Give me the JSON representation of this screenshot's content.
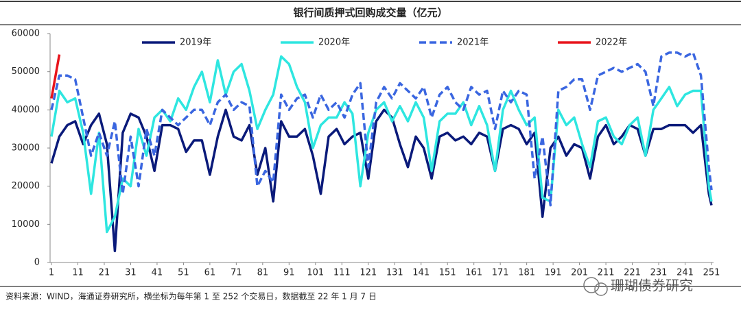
{
  "chart_data": {
    "type": "line",
    "title": "银行间质押式回购成交量（亿元）",
    "source": "资料来源：WIND，海通证券研究所，横坐标为每年第 1 至 252 个交易日，数据截至 22 年 1 月 7 日",
    "watermark": "珊瑚债券研究",
    "x": [
      1,
      4,
      7,
      10,
      13,
      16,
      19,
      22,
      25,
      28,
      31,
      34,
      37,
      40,
      43,
      46,
      49,
      52,
      55,
      58,
      61,
      64,
      67,
      70,
      73,
      76,
      79,
      82,
      85,
      88,
      91,
      94,
      97,
      100,
      103,
      106,
      109,
      112,
      115,
      118,
      121,
      124,
      127,
      130,
      133,
      136,
      139,
      142,
      145,
      148,
      151,
      154,
      157,
      160,
      163,
      166,
      169,
      172,
      175,
      178,
      181,
      184,
      187,
      190,
      193,
      196,
      199,
      202,
      205,
      208,
      211,
      214,
      217,
      220,
      223,
      226,
      229,
      232,
      235,
      238,
      241,
      244,
      247,
      250,
      251
    ],
    "xlim": [
      1,
      251
    ],
    "xticks": [
      1,
      11,
      21,
      31,
      41,
      51,
      61,
      71,
      81,
      91,
      101,
      111,
      121,
      131,
      141,
      151,
      161,
      171,
      181,
      191,
      201,
      211,
      221,
      231,
      241,
      251
    ],
    "ylim": [
      0,
      60000
    ],
    "yticks": [
      0,
      10000,
      20000,
      30000,
      40000,
      50000,
      60000
    ],
    "legend": "top",
    "series": [
      {
        "name": "2019年",
        "color": "#0a1a7a",
        "dashed": false,
        "values": [
          26000,
          33000,
          36000,
          37000,
          31000,
          36000,
          39000,
          31000,
          3000,
          34000,
          39000,
          38000,
          33000,
          24000,
          36000,
          36000,
          35000,
          29000,
          32000,
          32000,
          23000,
          33000,
          40000,
          33000,
          32000,
          36000,
          23000,
          30000,
          16000,
          37000,
          33000,
          33000,
          35000,
          28000,
          18000,
          33000,
          35000,
          31000,
          33000,
          34000,
          22000,
          37000,
          40000,
          38000,
          31000,
          25000,
          33000,
          30000,
          22000,
          33000,
          34000,
          32000,
          33000,
          31000,
          34000,
          33000,
          24000,
          35000,
          36000,
          35000,
          31000,
          34000,
          12000,
          30000,
          33000,
          28000,
          31000,
          30000,
          22000,
          33000,
          36000,
          31000,
          33000,
          36000,
          35000,
          28000,
          35000,
          35000,
          36000,
          36000,
          36000,
          34000,
          36000,
          18000,
          15000
        ]
      },
      {
        "name": "2020年",
        "color": "#2ee6e0",
        "dashed": false,
        "values": [
          33000,
          45000,
          42000,
          43000,
          34000,
          18000,
          34000,
          8000,
          12000,
          22000,
          20000,
          35000,
          28000,
          38000,
          40000,
          37000,
          43000,
          40000,
          46000,
          50000,
          42000,
          53000,
          44000,
          50000,
          52000,
          45000,
          35000,
          40000,
          44000,
          54000,
          52000,
          46000,
          42000,
          30000,
          36000,
          38000,
          38000,
          42000,
          39000,
          20000,
          34000,
          40000,
          42000,
          37000,
          41000,
          37000,
          42000,
          38000,
          24000,
          37000,
          39000,
          39000,
          42000,
          36000,
          41000,
          36000,
          24000,
          40000,
          45000,
          40000,
          36000,
          38000,
          17000,
          16000,
          40000,
          36000,
          38000,
          31000,
          25000,
          37000,
          38000,
          33000,
          31000,
          36000,
          38000,
          28000,
          40000,
          43000,
          46000,
          41000,
          44000,
          45000,
          45000,
          20000,
          16000
        ]
      },
      {
        "name": "2021年",
        "color": "#3a66e0",
        "dashed": true,
        "values": [
          40000,
          49000,
          49000,
          48000,
          38000,
          28000,
          34000,
          28000,
          37000,
          18000,
          33000,
          20000,
          35000,
          28000,
          40000,
          38000,
          36000,
          38000,
          40000,
          40000,
          36000,
          42000,
          44000,
          40000,
          42000,
          41000,
          20000,
          24000,
          21000,
          44000,
          40000,
          43000,
          44000,
          38000,
          44000,
          40000,
          42000,
          38000,
          44000,
          47000,
          25000,
          42000,
          46000,
          43000,
          47000,
          45000,
          43000,
          46000,
          38000,
          44000,
          46000,
          42000,
          40000,
          46000,
          44000,
          45000,
          35000,
          45000,
          42000,
          45000,
          44000,
          22000,
          33000,
          15000,
          45000,
          46000,
          48000,
          48000,
          40000,
          49000,
          50000,
          51000,
          50000,
          51000,
          52000,
          50000,
          41000,
          54000,
          55000,
          55000,
          54000,
          55000,
          49000,
          25000,
          19000
        ]
      },
      {
        "name": "2022年",
        "color": "#e8141c",
        "dashed": false,
        "values": [
          43000,
          54500,
          null,
          null,
          null,
          null,
          null,
          null,
          null,
          null,
          null,
          null,
          null,
          null,
          null,
          null,
          null,
          null,
          null,
          null,
          null,
          null,
          null,
          null,
          null,
          null,
          null,
          null,
          null,
          null,
          null,
          null,
          null,
          null,
          null,
          null,
          null,
          null,
          null,
          null,
          null,
          null,
          null,
          null,
          null,
          null,
          null,
          null,
          null,
          null,
          null,
          null,
          null,
          null,
          null,
          null,
          null,
          null,
          null,
          null,
          null,
          null,
          null,
          null,
          null,
          null,
          null,
          null,
          null,
          null,
          null,
          null,
          null,
          null,
          null,
          null,
          null,
          null,
          null,
          null,
          null,
          null,
          null,
          null,
          null
        ]
      }
    ]
  }
}
